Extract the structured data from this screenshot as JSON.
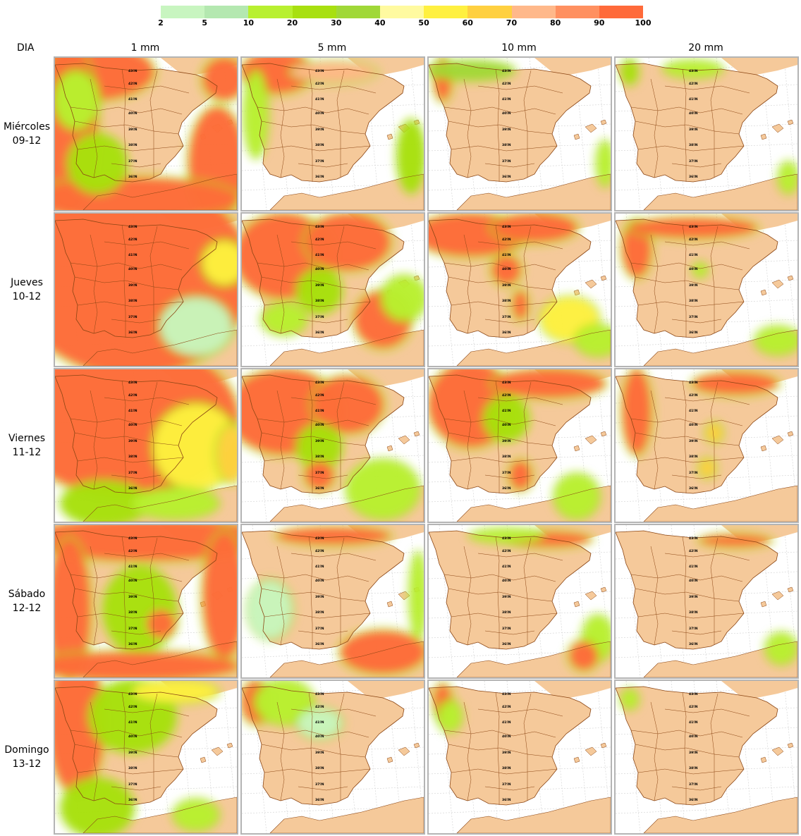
{
  "legend": {
    "ticks": [
      "2",
      "5",
      "10",
      "20",
      "30",
      "40",
      "50",
      "60",
      "70",
      "80",
      "90",
      "100"
    ],
    "colors": [
      "#c8f5c0",
      "#b4e8b0",
      "#b8f030",
      "#a8e010",
      "#a0d838",
      "#fffaa0",
      "#fff040",
      "#ffd040",
      "#ffb88a",
      "#ff9060",
      "#ff6a3a"
    ]
  },
  "header": {
    "dia": "DIA",
    "columns": [
      "1 mm",
      "5 mm",
      "10 mm",
      "20 mm"
    ]
  },
  "rows": [
    {
      "day": "Miércoles",
      "date": "09-12"
    },
    {
      "day": "Jueves",
      "date": "10-12"
    },
    {
      "day": "Viernes",
      "date": "11-12"
    },
    {
      "day": "Sábado",
      "date": "12-12"
    },
    {
      "day": "Domingo",
      "date": "13-12"
    }
  ],
  "map": {
    "land_color": "#f5c99a",
    "sea_color": "#ffffff",
    "border_color": "#8b4513",
    "latitude_labels": [
      "43ºN",
      "42ºN",
      "41ºN",
      "40ºN",
      "39ºN",
      "38ºN",
      "37ºN",
      "36ºN"
    ]
  }
}
